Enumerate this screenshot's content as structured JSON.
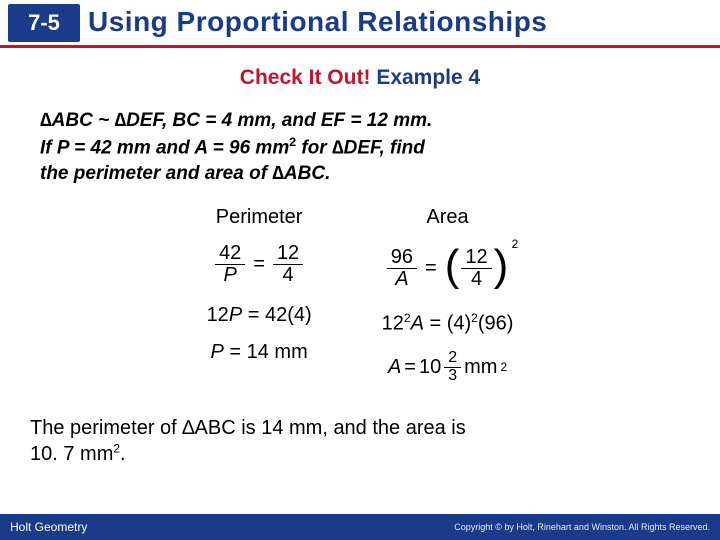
{
  "header": {
    "section": "7-5",
    "title": "Using Proportional Relationships"
  },
  "example": {
    "check": "Check It Out!",
    "label": "Example 4"
  },
  "problem": {
    "line1_a": "∆ABC ~ ∆DEF, BC = 4 mm, and EF = 12 mm.",
    "line2_a": "If P = 42 mm and A = 96 mm",
    "line2_b": " for ∆DEF, find",
    "line3": "the perimeter and area of ∆ABC."
  },
  "perimeter": {
    "title": "Perimeter",
    "f1_num": "42",
    "f1_den": "P",
    "f2_num": "12",
    "f2_den": "4",
    "step": "12P = 42(4)",
    "result": "P = 14 mm"
  },
  "area": {
    "title": "Area",
    "f1_num": "96",
    "f1_den": "A",
    "f2_num": "12",
    "f2_den": "4",
    "step_lhs": "12",
    "step_mid": "A = (4)",
    "step_rhs": "(96)",
    "res_lhs": "A",
    "res_eq": "=",
    "res_int": "10",
    "res_fnum": "2",
    "res_fden": "3",
    "res_unit": "mm"
  },
  "conclusion": {
    "text_a": "The perimeter of ∆ABC is 14 mm, and the area is",
    "text_b": "10. 7 mm",
    "text_c": "."
  },
  "footer": {
    "left": "Holt Geometry",
    "right": "Copyright © by Holt, Rinehart and Winston. All Rights Reserved."
  }
}
